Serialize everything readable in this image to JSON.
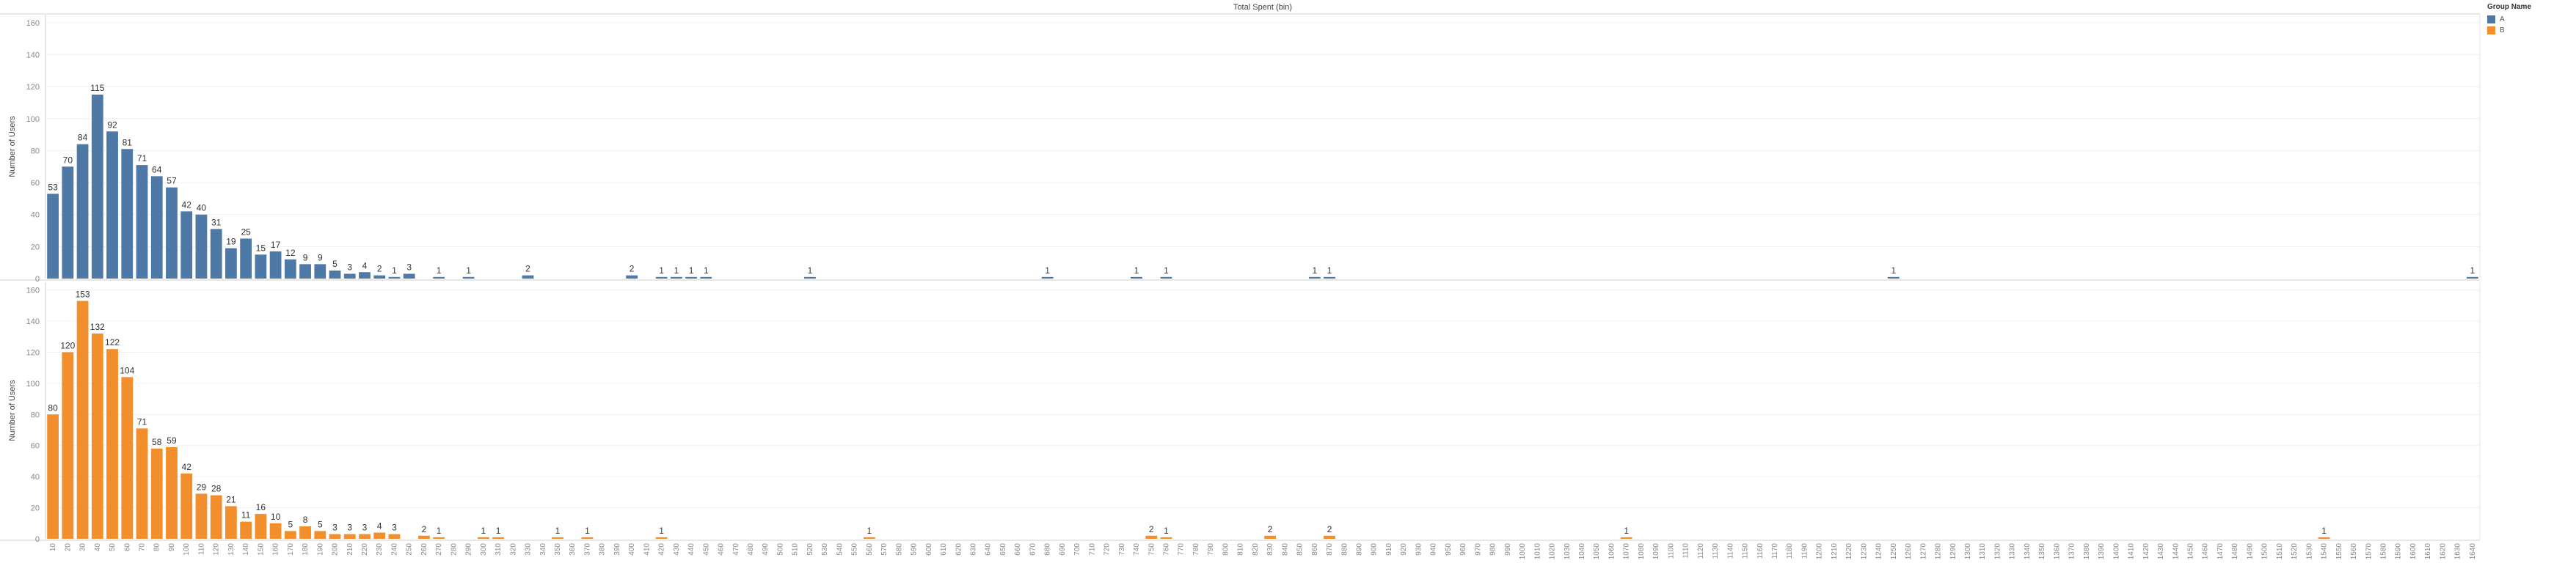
{
  "chart_data": {
    "type": "bar",
    "title": "Total Spent (bin)",
    "ylabel": "Number of Users",
    "ylim": [
      0,
      165
    ],
    "yticks": [
      0,
      20,
      40,
      60,
      80,
      100,
      120,
      140,
      160
    ],
    "x_bin_start": 10,
    "x_bin_step": 10,
    "x_bin_end": 1640,
    "legend": {
      "title": "Group Name",
      "placement": "top-right",
      "items": [
        {
          "name": "A",
          "color": "#4e79a7"
        },
        {
          "name": "B",
          "color": "#f28e2b"
        }
      ]
    },
    "series": [
      {
        "name": "A",
        "color": "#4e79a7",
        "points": [
          [
            10,
            53
          ],
          [
            20,
            70
          ],
          [
            30,
            84
          ],
          [
            40,
            115
          ],
          [
            50,
            92
          ],
          [
            60,
            81
          ],
          [
            70,
            71
          ],
          [
            80,
            64
          ],
          [
            90,
            57
          ],
          [
            100,
            42
          ],
          [
            110,
            40
          ],
          [
            120,
            31
          ],
          [
            130,
            19
          ],
          [
            140,
            25
          ],
          [
            150,
            15
          ],
          [
            160,
            17
          ],
          [
            170,
            12
          ],
          [
            180,
            9
          ],
          [
            190,
            9
          ],
          [
            200,
            5
          ],
          [
            210,
            3
          ],
          [
            220,
            4
          ],
          [
            230,
            2
          ],
          [
            240,
            1
          ],
          [
            250,
            3
          ],
          [
            270,
            1
          ],
          [
            290,
            1
          ],
          [
            330,
            2
          ],
          [
            400,
            2
          ],
          [
            420,
            1
          ],
          [
            430,
            1
          ],
          [
            440,
            1
          ],
          [
            450,
            1
          ],
          [
            520,
            1
          ],
          [
            680,
            1
          ],
          [
            740,
            1
          ],
          [
            760,
            1
          ],
          [
            860,
            1
          ],
          [
            870,
            1
          ],
          [
            1250,
            1
          ],
          [
            1640,
            1
          ]
        ]
      },
      {
        "name": "B",
        "color": "#f28e2b",
        "points": [
          [
            10,
            80
          ],
          [
            20,
            120
          ],
          [
            30,
            153
          ],
          [
            40,
            132
          ],
          [
            50,
            122
          ],
          [
            60,
            104
          ],
          [
            70,
            71
          ],
          [
            80,
            58
          ],
          [
            90,
            59
          ],
          [
            100,
            42
          ],
          [
            110,
            29
          ],
          [
            120,
            28
          ],
          [
            130,
            21
          ],
          [
            140,
            11
          ],
          [
            150,
            16
          ],
          [
            160,
            10
          ],
          [
            170,
            5
          ],
          [
            180,
            8
          ],
          [
            190,
            5
          ],
          [
            200,
            3
          ],
          [
            210,
            3
          ],
          [
            220,
            3
          ],
          [
            230,
            4
          ],
          [
            240,
            3
          ],
          [
            260,
            2
          ],
          [
            270,
            1
          ],
          [
            300,
            1
          ],
          [
            310,
            1
          ],
          [
            350,
            1
          ],
          [
            370,
            1
          ],
          [
            420,
            1
          ],
          [
            560,
            1
          ],
          [
            750,
            2
          ],
          [
            760,
            1
          ],
          [
            830,
            2
          ],
          [
            870,
            2
          ],
          [
            1070,
            1
          ],
          [
            1540,
            1
          ]
        ]
      }
    ]
  }
}
